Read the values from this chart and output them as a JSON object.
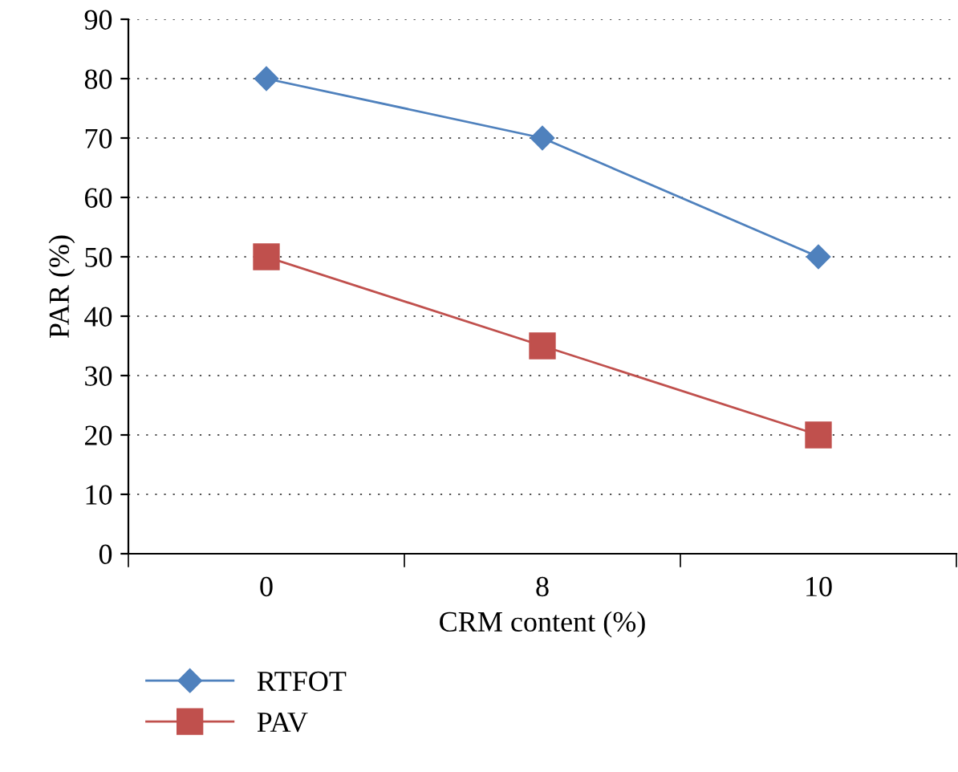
{
  "chart_data": {
    "type": "line",
    "xlabel": "CRM content (%)",
    "ylabel": "PAR (%)",
    "categories": [
      "0",
      "8",
      "10"
    ],
    "series": [
      {
        "name": "RTFOT",
        "color": "#4f81bd",
        "values": [
          80,
          70,
          50
        ],
        "marker": "diamond"
      },
      {
        "name": "PAV",
        "color": "#c0504d",
        "values": [
          50,
          35,
          20
        ],
        "marker": "square"
      }
    ],
    "ylim": [
      0,
      90
    ],
    "yticks": [
      0,
      10,
      20,
      30,
      40,
      50,
      60,
      70,
      80,
      90
    ],
    "grid": "y",
    "legend": "bottom left",
    "line_style": "solid"
  }
}
